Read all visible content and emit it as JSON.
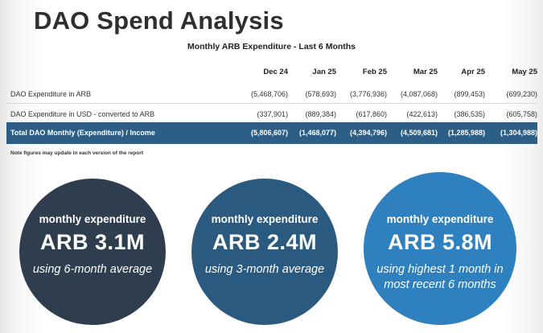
{
  "title": "DAO Spend Analysis",
  "table": {
    "subtitle": "Monthly ARB Expenditure - Last 6 Months",
    "columns": [
      "Dec 24",
      "Jan 25",
      "Feb 25",
      "Mar 25",
      "Apr 25",
      "May 25"
    ],
    "rows": [
      {
        "label": "DAO Expenditure in ARB",
        "values": [
          "(5,468,706)",
          "(578,693)",
          "(3,776,936)",
          "(4,087,068)",
          "(899,453)",
          "(699,230)"
        ]
      },
      {
        "label": "DAO Expenditure in USD - converted to ARB",
        "values": [
          "(337,901)",
          "(889,384)",
          "(617,860)",
          "(422,613)",
          "(386,535)",
          "(605,758)"
        ]
      }
    ],
    "total": {
      "label": "Total DAO Monthly (Expenditure) / Income",
      "values": [
        "(5,806,607)",
        "(1,468,077)",
        "(4,394,796)",
        "(4,509,681)",
        "(1,285,988)",
        "(1,304,988)"
      ]
    },
    "note": "Note figures may update in each version of the report"
  },
  "circles": [
    {
      "heading": "monthly expenditure",
      "amount": "ARB 3.1M",
      "basis": "using 6-month average",
      "color": "#2e3e4f"
    },
    {
      "heading": "monthly expenditure",
      "amount": "ARB 2.4M",
      "basis": "using 3-month average",
      "color": "#2b5a80"
    },
    {
      "heading": "monthly expenditure",
      "amount": "ARB 5.8M",
      "basis": "using highest 1 month in most recent 6 months",
      "color": "#2f80bf"
    }
  ],
  "colors": {
    "total_bar": "#2d5f86",
    "title_text": "#2f2f2f"
  }
}
